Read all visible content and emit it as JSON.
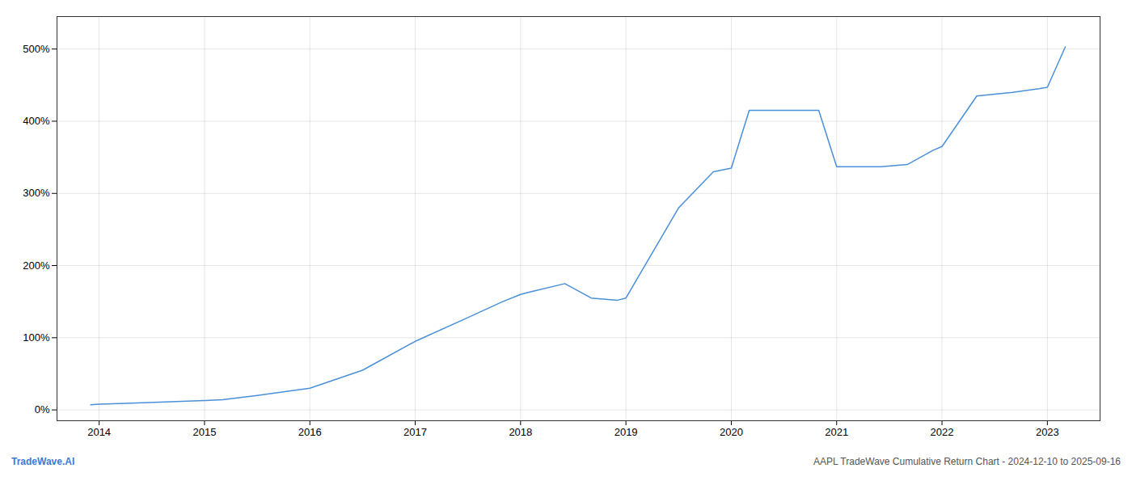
{
  "chart_data": {
    "type": "line",
    "title": "AAPL TradeWave Cumulative Return Chart - 2024-12-10 to 2025-09-16",
    "annotations": [
      "TradeWave.AI"
    ],
    "x": [
      2013.92,
      2014.0,
      2014.25,
      2015.0,
      2015.17,
      2015.5,
      2016.0,
      2016.5,
      2017.0,
      2017.5,
      2017.83,
      2018.0,
      2018.08,
      2018.42,
      2018.67,
      2018.92,
      2019.0,
      2019.5,
      2019.83,
      2020.0,
      2020.17,
      2020.83,
      2021.0,
      2021.42,
      2021.67,
      2021.92,
      2022.0,
      2022.33,
      2022.67,
      2022.92,
      2023.0,
      2023.17
    ],
    "values": [
      7,
      8,
      9,
      13,
      14,
      20,
      30,
      55,
      95,
      128,
      150,
      160,
      163,
      175,
      155,
      152,
      155,
      280,
      330,
      335,
      415,
      415,
      337,
      337,
      340,
      360,
      365,
      435,
      440,
      445,
      447,
      503
    ],
    "color": "#4a90d9",
    "xlim": [
      2013.6,
      2023.5
    ],
    "xticks": [
      2014,
      2015,
      2016,
      2017,
      2018,
      2019,
      2020,
      2021,
      2022,
      2023
    ],
    "ylim": [
      -15,
      545
    ],
    "yticks": [
      {
        "value": 0,
        "label": "0%"
      },
      {
        "value": 100,
        "label": "100%"
      },
      {
        "value": 200,
        "label": "200%"
      },
      {
        "value": 300,
        "label": "300%"
      },
      {
        "value": 400,
        "label": "400%"
      },
      {
        "value": 500,
        "label": "500%"
      }
    ],
    "grid": true
  }
}
